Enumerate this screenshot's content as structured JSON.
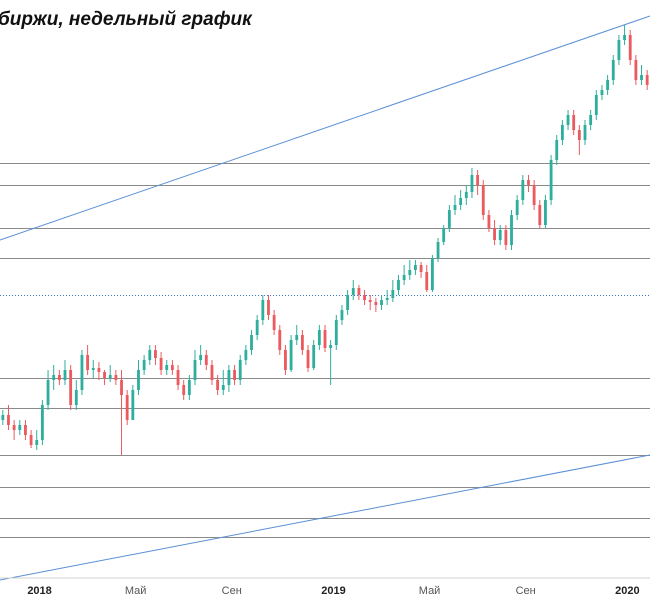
{
  "chart_data": {
    "type": "candlestick",
    "title": "биржи, недельный график",
    "x_ticks": [
      {
        "label": "2018",
        "week": 7,
        "bold": true
      },
      {
        "label": "Май",
        "week": 24,
        "bold": false
      },
      {
        "label": "Сен",
        "week": 41,
        "bold": false
      },
      {
        "label": "2019",
        "week": 59,
        "bold": true
      },
      {
        "label": "Май",
        "week": 76,
        "bold": false
      },
      {
        "label": "Сен",
        "week": 93,
        "bold": false
      },
      {
        "label": "2020",
        "week": 111,
        "bold": true
      }
    ],
    "y_range": [
      0,
      600
    ],
    "x_range": [
      0,
      115
    ],
    "horizontal_levels": [
      163,
      185,
      228,
      258,
      378,
      408,
      455,
      487,
      518,
      537
    ],
    "dotted_level": 295,
    "trend_lines": [
      {
        "from": [
          0,
          240
        ],
        "to": [
          115,
          16
        ]
      },
      {
        "from": [
          0,
          580
        ],
        "to": [
          115,
          455
        ]
      }
    ],
    "candles": [
      [
        420,
        415,
        410,
        425
      ],
      [
        415,
        425,
        405,
        430
      ],
      [
        425,
        430,
        420,
        440
      ],
      [
        430,
        425,
        420,
        435
      ],
      [
        425,
        435,
        420,
        440
      ],
      [
        435,
        445,
        430,
        448
      ],
      [
        445,
        440,
        430,
        450
      ],
      [
        440,
        405,
        400,
        445
      ],
      [
        405,
        380,
        370,
        410
      ],
      [
        380,
        375,
        365,
        390
      ],
      [
        375,
        380,
        370,
        385
      ],
      [
        380,
        370,
        360,
        385
      ],
      [
        370,
        405,
        365,
        410
      ],
      [
        405,
        390,
        380,
        410
      ],
      [
        390,
        355,
        350,
        395
      ],
      [
        355,
        370,
        345,
        375
      ],
      [
        370,
        368,
        360,
        378
      ],
      [
        368,
        372,
        362,
        380
      ],
      [
        372,
        378,
        370,
        385
      ],
      [
        378,
        375,
        365,
        382
      ],
      [
        375,
        380,
        370,
        385
      ],
      [
        380,
        395,
        370,
        455
      ],
      [
        395,
        420,
        390,
        425
      ],
      [
        420,
        390,
        385,
        420
      ],
      [
        390,
        370,
        360,
        395
      ],
      [
        370,
        360,
        355,
        375
      ],
      [
        360,
        350,
        345,
        365
      ],
      [
        350,
        358,
        345,
        365
      ],
      [
        358,
        370,
        352,
        375
      ],
      [
        370,
        365,
        360,
        375
      ],
      [
        365,
        370,
        360,
        375
      ],
      [
        370,
        385,
        365,
        390
      ],
      [
        385,
        395,
        380,
        400
      ],
      [
        395,
        380,
        375,
        400
      ],
      [
        380,
        360,
        350,
        385
      ],
      [
        360,
        355,
        345,
        365
      ],
      [
        355,
        365,
        350,
        370
      ],
      [
        365,
        380,
        360,
        385
      ],
      [
        380,
        390,
        375,
        395
      ],
      [
        390,
        385,
        370,
        395
      ],
      [
        385,
        370,
        365,
        392
      ],
      [
        370,
        380,
        365,
        385
      ],
      [
        380,
        360,
        355,
        385
      ],
      [
        360,
        350,
        345,
        365
      ],
      [
        350,
        335,
        330,
        355
      ],
      [
        335,
        320,
        315,
        340
      ],
      [
        320,
        300,
        295,
        325
      ],
      [
        300,
        315,
        295,
        320
      ],
      [
        315,
        330,
        310,
        335
      ],
      [
        330,
        350,
        325,
        355
      ],
      [
        350,
        370,
        345,
        375
      ],
      [
        370,
        340,
        335,
        372
      ],
      [
        340,
        335,
        325,
        345
      ],
      [
        335,
        350,
        330,
        355
      ],
      [
        350,
        368,
        345,
        372
      ],
      [
        368,
        345,
        340,
        370
      ],
      [
        345,
        330,
        325,
        350
      ],
      [
        330,
        348,
        325,
        352
      ],
      [
        348,
        345,
        340,
        385
      ],
      [
        345,
        320,
        315,
        350
      ],
      [
        320,
        310,
        305,
        325
      ],
      [
        310,
        295,
        290,
        315
      ],
      [
        295,
        288,
        280,
        300
      ],
      [
        288,
        295,
        285,
        300
      ],
      [
        295,
        300,
        290,
        305
      ],
      [
        300,
        302,
        295,
        310
      ],
      [
        302,
        305,
        298,
        312
      ],
      [
        305,
        300,
        295,
        310
      ],
      [
        300,
        298,
        290,
        305
      ],
      [
        298,
        290,
        280,
        302
      ],
      [
        290,
        280,
        275,
        295
      ],
      [
        280,
        275,
        265,
        285
      ],
      [
        275,
        270,
        260,
        280
      ],
      [
        270,
        265,
        260,
        275
      ],
      [
        265,
        272,
        262,
        278
      ],
      [
        272,
        290,
        265,
        292
      ],
      [
        290,
        258,
        255,
        292
      ],
      [
        258,
        242,
        238,
        262
      ],
      [
        242,
        228,
        225,
        245
      ],
      [
        228,
        210,
        205,
        232
      ],
      [
        210,
        205,
        195,
        215
      ],
      [
        205,
        198,
        190,
        210
      ],
      [
        198,
        192,
        185,
        205
      ],
      [
        192,
        175,
        168,
        198
      ],
      [
        175,
        185,
        170,
        195
      ],
      [
        185,
        215,
        180,
        220
      ],
      [
        215,
        228,
        210,
        232
      ],
      [
        228,
        240,
        220,
        245
      ],
      [
        240,
        230,
        225,
        245
      ],
      [
        230,
        245,
        225,
        250
      ],
      [
        245,
        215,
        210,
        250
      ],
      [
        215,
        200,
        195,
        220
      ],
      [
        200,
        180,
        175,
        205
      ],
      [
        180,
        185,
        175,
        192
      ],
      [
        185,
        205,
        180,
        210
      ],
      [
        205,
        225,
        200,
        228
      ],
      [
        225,
        200,
        195,
        228
      ],
      [
        200,
        160,
        155,
        205
      ],
      [
        160,
        140,
        135,
        165
      ],
      [
        140,
        125,
        120,
        145
      ],
      [
        125,
        115,
        110,
        130
      ],
      [
        115,
        130,
        110,
        135
      ],
      [
        130,
        140,
        125,
        155
      ],
      [
        140,
        125,
        120,
        145
      ],
      [
        125,
        115,
        110,
        130
      ],
      [
        115,
        95,
        90,
        120
      ],
      [
        95,
        90,
        85,
        100
      ],
      [
        90,
        80,
        75,
        95
      ],
      [
        80,
        60,
        55,
        85
      ],
      [
        60,
        40,
        35,
        65
      ],
      [
        40,
        35,
        25,
        45
      ],
      [
        35,
        60,
        30,
        65
      ],
      [
        60,
        80,
        55,
        85
      ],
      [
        80,
        75,
        65,
        85
      ],
      [
        75,
        85,
        70,
        90
      ]
    ]
  }
}
